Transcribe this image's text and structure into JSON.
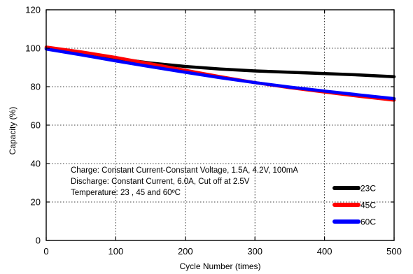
{
  "chart_data": {
    "type": "line",
    "xlabel": "Cycle Number (times)",
    "ylabel": "Capacity (%)",
    "xlim": [
      0,
      500
    ],
    "ylim": [
      0,
      120
    ],
    "x_ticks": [
      0,
      100,
      200,
      300,
      400,
      500
    ],
    "y_ticks": [
      0,
      20,
      40,
      60,
      80,
      100,
      120
    ],
    "x_tick_labels": [
      "0",
      "100",
      "200",
      "300",
      "400",
      "500"
    ],
    "y_tick_labels": [
      "0",
      "20",
      "40",
      "60",
      "80",
      "100",
      "120"
    ],
    "grid": true,
    "legend_position": "bottom-right",
    "annotation_lines": [
      "Charge: Constant Current-Constant Voltage, 1.5A, 4.2V, 100mA",
      "Discharge: Constant Current, 6.0A, Cut off at 2.5V",
      "Temperature: 23 , 45 and 60ºC"
    ],
    "series": [
      {
        "name": "23C",
        "color": "#000000",
        "x": [
          0,
          50,
          100,
          150,
          200,
          250,
          300,
          350,
          400,
          450,
          500
        ],
        "y": [
          100,
          97.3,
          94.7,
          92.3,
          90.5,
          89.2,
          88.2,
          87.5,
          86.8,
          86.1,
          85.2
        ]
      },
      {
        "name": "45C",
        "color": "#ff0000",
        "x": [
          0,
          50,
          100,
          150,
          200,
          250,
          300,
          350,
          400,
          450,
          500
        ],
        "y": [
          100.6,
          98.1,
          95.2,
          91.9,
          88.5,
          85.2,
          82.1,
          79.5,
          77.2,
          75.0,
          73.0
        ]
      },
      {
        "name": "60C",
        "color": "#0000ff",
        "x": [
          0,
          50,
          100,
          150,
          200,
          250,
          300,
          350,
          400,
          450,
          500
        ],
        "y": [
          99.6,
          96.6,
          93.4,
          90.4,
          87.5,
          84.7,
          82.1,
          79.8,
          77.7,
          75.7,
          73.8
        ]
      }
    ]
  }
}
